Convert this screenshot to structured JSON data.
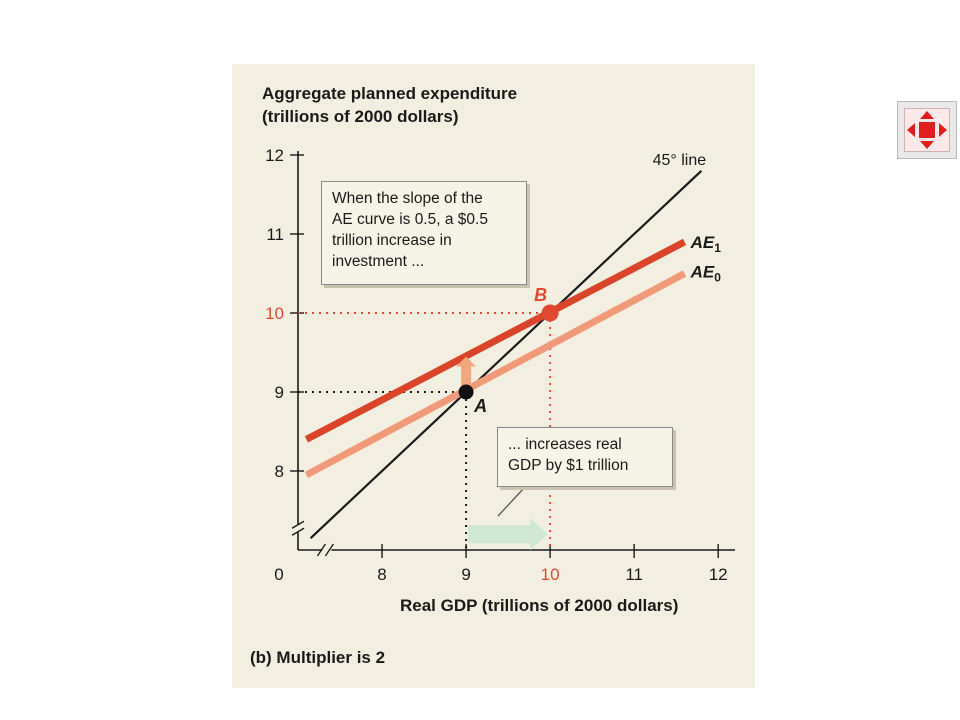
{
  "figure": {
    "caption": "(b) Multiplier is 2",
    "callout_top": [
      "When the slope of the",
      "AE curve is 0.5, a $0.5",
      "trillion increase in",
      "investment ..."
    ],
    "callout_bottom": [
      "... increases real",
      "GDP by $1 trillion"
    ]
  },
  "chart_data": {
    "type": "line",
    "ylabel_lines": [
      "Aggregate planned expenditure",
      "(trillions of 2000 dollars)"
    ],
    "xlabel": "Real GDP (trillions of 2000 dollars)",
    "origin_label": "0",
    "xlim": [
      7.0,
      12.2
    ],
    "ylim": [
      7.0,
      12.0
    ],
    "x_ticks": [
      8,
      9,
      10,
      11,
      12
    ],
    "y_ticks": [
      8,
      9,
      10,
      11,
      12
    ],
    "x_tick_labels": [
      "8",
      "9",
      "10",
      "11",
      "12"
    ],
    "y_tick_labels": [
      "8",
      "9",
      "10",
      "11",
      "12"
    ],
    "highlight_tick": 10,
    "axis_break": true,
    "series": [
      {
        "name": "45° line",
        "points": [
          [
            7.15,
            7.15
          ],
          [
            11.8,
            11.8
          ]
        ],
        "color": "#1a1a1a"
      },
      {
        "name": "AE1",
        "points": [
          [
            7.1,
            8.4
          ],
          [
            11.6,
            10.9
          ]
        ],
        "color": "#d9442b"
      },
      {
        "name": "AE0",
        "points": [
          [
            7.1,
            7.95
          ],
          [
            11.6,
            10.5
          ]
        ],
        "color": "#f09a7a"
      }
    ],
    "points": [
      {
        "label": "A",
        "x": 9.0,
        "y": 9.0,
        "color": "#111111"
      },
      {
        "label": "B",
        "x": 10.0,
        "y": 10.0,
        "color": "#e0492f"
      }
    ],
    "annotations": {
      "investment_increase": {
        "x": 9.0,
        "from": 9.0,
        "to": 9.5
      },
      "gdp_increase": {
        "y_level": 7.2,
        "from": 9.0,
        "to": 10.0
      }
    },
    "colors": {
      "highlight": "#e0492f",
      "ae1": "#d9442b",
      "ae0": "#f09a7a",
      "arrow_green": "#cfe8d4",
      "arrow_up": "#f3a77f"
    }
  },
  "ui": {
    "expand_icon": "expand-arrows-icon",
    "expand_color": "#e01e1e"
  }
}
